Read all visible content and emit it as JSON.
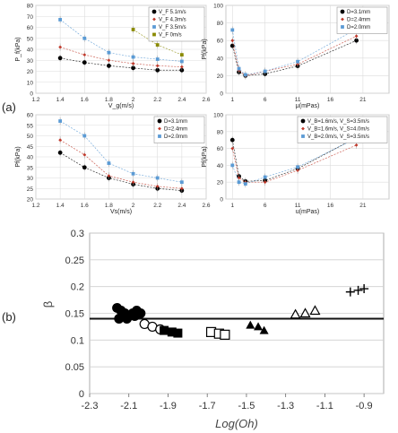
{
  "panel_labels": {
    "a": "(a)",
    "b": "(b)"
  },
  "chart_data": [
    {
      "id": "a1",
      "type": "scatter",
      "xlabel": "V_g(m/s)",
      "ylabel": "P_f(kPa)",
      "xlim": [
        1.2,
        2.6
      ],
      "ylim": [
        0,
        80
      ],
      "xticks": [
        1.2,
        1.4,
        1.6,
        1.8,
        2.0,
        2.2,
        2.4,
        2.6
      ],
      "yticks": [
        0,
        10,
        20,
        30,
        40,
        50,
        60,
        70,
        80
      ],
      "grid": true,
      "legend": "top-right",
      "series": [
        {
          "name": "V_F 5.1m/s",
          "color": "#000000",
          "marker": "circle",
          "x": [
            1.4,
            1.6,
            1.8,
            2.0,
            2.2,
            2.4
          ],
          "y": [
            32,
            28,
            25,
            23,
            21,
            21
          ]
        },
        {
          "name": "V_F 4.3m/s",
          "color": "#c0392b",
          "marker": "diamond",
          "x": [
            1.4,
            1.6,
            1.8,
            2.0,
            2.2,
            2.4
          ],
          "y": [
            42,
            35,
            30,
            27,
            25,
            24
          ]
        },
        {
          "name": "V_F 3.5m/s",
          "color": "#5b9bd5",
          "marker": "square",
          "x": [
            1.4,
            1.6,
            1.8,
            2.0,
            2.2,
            2.4
          ],
          "y": [
            67,
            50,
            37,
            33,
            31,
            29
          ]
        },
        {
          "name": "V_F 0m/s",
          "color": "#8a8a00",
          "marker": "square",
          "x": [
            2.0,
            2.2,
            2.4
          ],
          "y": [
            58,
            44,
            35
          ]
        }
      ]
    },
    {
      "id": "a2",
      "type": "scatter",
      "xlabel": "μ(mPas)",
      "ylabel": "Pf(kPa)",
      "xlim": [
        0,
        25
      ],
      "ylim": [
        0,
        100
      ],
      "xticks": [
        1,
        6,
        11,
        16,
        21
      ],
      "yticks": [
        0,
        20,
        40,
        60,
        80,
        100
      ],
      "grid": true,
      "legend": "top-right",
      "series": [
        {
          "name": "D=3.1mm",
          "color": "#000000",
          "marker": "circle",
          "x": [
            1,
            2,
            3,
            6,
            11,
            20
          ],
          "y": [
            54,
            24,
            20,
            22,
            31,
            60
          ]
        },
        {
          "name": "D=2.4mm",
          "color": "#c0392b",
          "marker": "diamond",
          "x": [
            1,
            2,
            3,
            6,
            11,
            20
          ],
          "y": [
            60,
            26,
            20,
            25,
            33,
            65
          ]
        },
        {
          "name": "D=2.0mm",
          "color": "#5b9bd5",
          "marker": "square",
          "x": [
            1,
            2,
            3,
            6,
            11,
            20
          ],
          "y": [
            72,
            28,
            21,
            25,
            36,
            73
          ]
        }
      ]
    },
    {
      "id": "a3",
      "type": "scatter",
      "xlabel": "Vs(m/s)",
      "ylabel": "Pf(kPa)",
      "xlim": [
        1.2,
        2.6
      ],
      "ylim": [
        20,
        60
      ],
      "xticks": [
        1.2,
        1.4,
        1.6,
        1.8,
        2.0,
        2.2,
        2.4,
        2.6
      ],
      "yticks": [
        20,
        25,
        30,
        35,
        40,
        45,
        50,
        55,
        60
      ],
      "grid": true,
      "legend": "top-right",
      "series": [
        {
          "name": "D=3.1mm",
          "color": "#000000",
          "marker": "circle",
          "x": [
            1.4,
            1.6,
            1.8,
            2.0,
            2.2,
            2.4
          ],
          "y": [
            42,
            35,
            30,
            27,
            25,
            24
          ]
        },
        {
          "name": "D=2.4mm",
          "color": "#c0392b",
          "marker": "diamond",
          "x": [
            1.4,
            1.6,
            1.8,
            2.0,
            2.2,
            2.4
          ],
          "y": [
            48,
            41,
            31,
            28,
            26,
            25
          ]
        },
        {
          "name": "D=2.0mm",
          "color": "#5b9bd5",
          "marker": "square",
          "x": [
            1.4,
            1.6,
            1.8,
            2.0,
            2.2,
            2.4
          ],
          "y": [
            57,
            50,
            37,
            32,
            30,
            28
          ]
        }
      ]
    },
    {
      "id": "a4",
      "type": "scatter",
      "xlabel": "u(mPas)",
      "ylabel": "Pf(kPa)",
      "xlim": [
        0,
        25
      ],
      "ylim": [
        0,
        100
      ],
      "xticks": [
        1,
        6,
        11,
        16,
        21
      ],
      "yticks": [
        0,
        20,
        40,
        60,
        80,
        100
      ],
      "grid": true,
      "legend": "top-right",
      "series": [
        {
          "name": "V_B=1.6m/s, V_S=3.5m/s",
          "color": "#000000",
          "marker": "circle",
          "x": [
            1,
            2,
            3,
            6,
            11,
            20
          ],
          "y": [
            70,
            27,
            21,
            22,
            36,
            73
          ]
        },
        {
          "name": "V_B=1.6m/s, V_S=4.0m/s",
          "color": "#c0392b",
          "marker": "diamond",
          "x": [
            1,
            2,
            3,
            6,
            11,
            20
          ],
          "y": [
            60,
            25,
            20,
            20,
            34,
            64
          ]
        },
        {
          "name": "V_B=2.0m/s, V_S=3.5m/s",
          "color": "#5b9bd5",
          "marker": "square",
          "x": [
            1,
            2,
            3,
            6,
            11,
            20
          ],
          "y": [
            40,
            20,
            18,
            26,
            38,
            72
          ]
        }
      ]
    },
    {
      "id": "b",
      "type": "scatter",
      "xlabel": "Log(Oh)",
      "ylabel": "β",
      "xlim": [
        -2.3,
        -0.8
      ],
      "ylim": [
        0,
        0.3
      ],
      "xticks": [
        -2.3,
        -2.1,
        -1.9,
        -1.7,
        -1.5,
        -1.3,
        -1.1,
        -0.9
      ],
      "yticks": [
        0,
        0.05,
        0.1,
        0.15,
        0.2,
        0.25,
        0.3
      ],
      "grid": true,
      "legend": "none",
      "hline": 0.14,
      "series": [
        {
          "marker": "filled-circle",
          "color": "#000000",
          "x": [
            -2.16,
            -2.14,
            -2.12,
            -2.1,
            -2.08,
            -2.06,
            -2.04,
            -2.15,
            -2.11,
            -2.07
          ],
          "y": [
            0.16,
            0.155,
            0.15,
            0.145,
            0.15,
            0.155,
            0.15,
            0.14,
            0.14,
            0.145
          ]
        },
        {
          "marker": "open-circle",
          "color": "#000000",
          "x": [
            -2.02,
            -1.98,
            -1.94
          ],
          "y": [
            0.13,
            0.125,
            0.12
          ]
        },
        {
          "marker": "filled-square",
          "color": "#000000",
          "x": [
            -1.92,
            -1.88,
            -1.85
          ],
          "y": [
            0.118,
            0.115,
            0.113
          ]
        },
        {
          "marker": "open-square",
          "color": "#000000",
          "x": [
            -1.68,
            -1.64,
            -1.61
          ],
          "y": [
            0.115,
            0.112,
            0.11
          ]
        },
        {
          "marker": "filled-triangle",
          "color": "#000000",
          "x": [
            -1.48,
            -1.44,
            -1.41
          ],
          "y": [
            0.128,
            0.125,
            0.118
          ]
        },
        {
          "marker": "open-triangle",
          "color": "#000000",
          "x": [
            -1.25,
            -1.2,
            -1.15
          ],
          "y": [
            0.148,
            0.15,
            0.155
          ]
        },
        {
          "marker": "plus",
          "color": "#000000",
          "x": [
            -0.97,
            -0.93,
            -0.9
          ],
          "y": [
            0.19,
            0.193,
            0.196
          ]
        }
      ]
    }
  ]
}
